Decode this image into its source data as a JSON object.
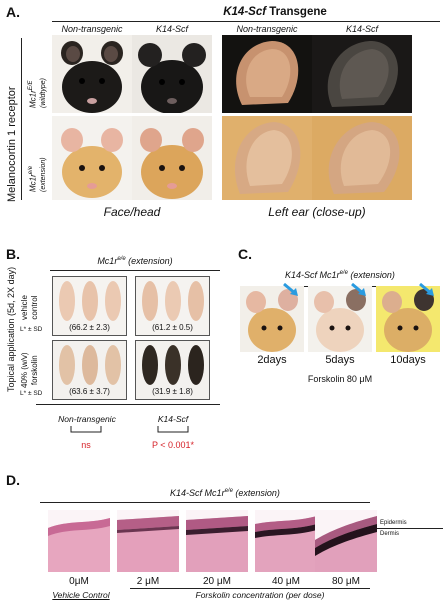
{
  "panelA": {
    "letter": "A.",
    "transgene_prefix": "K14-Scf",
    "transgene_suffix": " Transgene",
    "col_headers": [
      "Non-transgenic",
      "K14-Scf",
      "Non-transgenic",
      "K14-Scf"
    ],
    "side_label": "Melanocortin 1 receptor",
    "row1_label_a": "Mc1r",
    "row1_label_sup": "E/E",
    "row1_label_b": "(wildtype)",
    "row2_label_a": "Mc1r",
    "row2_label_sup": "e/e",
    "row2_label_b": "(extension)",
    "footer_left": "Face/head",
    "footer_right": "Left ear (close-up)"
  },
  "panelB": {
    "letter": "B.",
    "header_a": "Mc1r",
    "header_sup": "e/e",
    "header_b": " (extension)",
    "side_label": "Topical application (5d, 2X day)",
    "row1_label_a": "vehicle",
    "row1_label_b": "control",
    "row2_label_a": "40% (w/v)",
    "row2_label_b": "forskolin",
    "lstar": "L* ± SD",
    "values": [
      "(66.2 ± 2.3)",
      "(61.2 ± 0.5)",
      "(63.6 ± 3.7)",
      "(31.9 ± 1.8)"
    ],
    "group_left": "Non-transgenic",
    "group_right": "K14-Scf",
    "stat_left": "ns",
    "stat_right": "P < 0.001*"
  },
  "panelC": {
    "letter": "C.",
    "header_a": "K14-Scf Mc1r",
    "header_sup": "e/e",
    "header_b": " (extension)",
    "days": [
      "2days",
      "5days",
      "10days"
    ],
    "caption": "Forskolin 80 μM"
  },
  "panelD": {
    "letter": "D.",
    "header_a": "K14-Scf Mc1r",
    "header_sup": "e/e",
    "header_b": " (extension)",
    "layer_epidermis": "Epidermis",
    "layer_dermis": "Dermis",
    "concentrations": [
      "0μM",
      "2 μM",
      "20 μM",
      "40 μM",
      "80 μM"
    ],
    "footer_left": "Vehicle Control",
    "footer_right": "Forskolin concentration (per dose)"
  },
  "colors": {
    "black_coat": "#1c1a18",
    "yellow_coat": "#e1b56c",
    "ear_pink": "#d9a985",
    "ear_dark": "#55504a",
    "pale_coat": "#e9cdb4",
    "dark_coat": "#2e2720",
    "histo_pink": "#e7a6bf",
    "melanin": "#2a1622",
    "arrow_blue": "#2a9be0",
    "stat_red": "#d6232a"
  }
}
